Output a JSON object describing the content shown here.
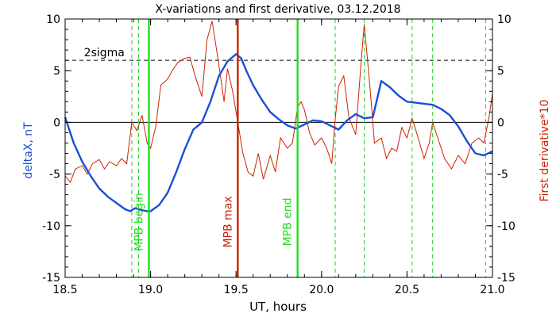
{
  "chart_data": {
    "type": "line",
    "title": "X-variations and first derivative, 03.12.2018",
    "xlabel": "UT, hours",
    "ylabel_left": "deltaX, nT",
    "ylabel_right": "First derivative*10",
    "xlim": [
      18.5,
      21.0
    ],
    "ylim": [
      -15,
      10
    ],
    "x_ticks": [
      "18.5",
      "19.0",
      "19.5",
      "20.0",
      "20.5",
      "21.0"
    ],
    "y_ticks": [
      "-15",
      "-10",
      "-5",
      "0",
      "5",
      "10"
    ],
    "colors": {
      "deltaX": "#1a4fd6",
      "derivative": "#cc2200",
      "mpb_boundary": "#22dd22",
      "mpb_max": "#cc2200",
      "green_dashed": "#22cc22",
      "axis": "#000000"
    },
    "sigma_level": {
      "label": "2sigma",
      "value": 6
    },
    "zero_line": 0,
    "markers": [
      {
        "label": "MPB begin",
        "x": 18.99,
        "color": "#22dd22",
        "style": "solid"
      },
      {
        "label": "MPB max",
        "x": 19.51,
        "color": "#cc2200",
        "style": "solid"
      },
      {
        "label": "MPB end",
        "x": 19.86,
        "color": "#22dd22",
        "style": "solid"
      }
    ],
    "dashed_markers": [
      18.89,
      18.93,
      20.08,
      20.25,
      20.53,
      20.65,
      20.96
    ],
    "series": [
      {
        "name": "deltaX",
        "axis": "left",
        "x": [
          18.5,
          18.55,
          18.6,
          18.65,
          18.7,
          18.75,
          18.8,
          18.85,
          18.88,
          18.91,
          18.95,
          18.98,
          19.0,
          19.05,
          19.1,
          19.15,
          19.2,
          19.25,
          19.3,
          19.35,
          19.4,
          19.45,
          19.5,
          19.53,
          19.56,
          19.6,
          19.65,
          19.7,
          19.75,
          19.8,
          19.85,
          19.9,
          19.95,
          20.0,
          20.05,
          20.1,
          20.15,
          20.2,
          20.25,
          20.3,
          20.35,
          20.4,
          20.45,
          20.5,
          20.55,
          20.6,
          20.65,
          20.7,
          20.75,
          20.8,
          20.85,
          20.9,
          20.95,
          21.0
        ],
        "y": [
          0.5,
          -2.0,
          -3.8,
          -5.2,
          -6.4,
          -7.2,
          -7.8,
          -8.4,
          -8.6,
          -8.3,
          -8.5,
          -8.6,
          -8.6,
          -8.0,
          -6.8,
          -4.8,
          -2.6,
          -0.7,
          0.0,
          2.0,
          4.5,
          5.9,
          6.6,
          6.2,
          5.0,
          3.6,
          2.2,
          1.0,
          0.3,
          -0.3,
          -0.6,
          -0.2,
          0.2,
          0.1,
          -0.3,
          -0.7,
          0.2,
          0.8,
          0.4,
          0.5,
          4.0,
          3.4,
          2.6,
          2.0,
          1.9,
          1.8,
          1.7,
          1.3,
          0.7,
          -0.4,
          -1.8,
          -3.0,
          -3.2,
          -2.8
        ]
      },
      {
        "name": "First derivative*10",
        "axis": "right",
        "x": [
          18.5,
          18.53,
          18.56,
          18.6,
          18.63,
          18.66,
          18.7,
          18.73,
          18.76,
          18.8,
          18.83,
          18.86,
          18.89,
          18.92,
          18.95,
          18.98,
          19.0,
          19.03,
          19.06,
          19.1,
          19.13,
          19.16,
          19.2,
          19.23,
          19.26,
          19.3,
          19.33,
          19.36,
          19.4,
          19.43,
          19.45,
          19.48,
          19.51,
          19.54,
          19.57,
          19.6,
          19.63,
          19.66,
          19.7,
          19.73,
          19.76,
          19.8,
          19.83,
          19.86,
          19.88,
          19.9,
          19.93,
          19.96,
          20.0,
          20.03,
          20.06,
          20.08,
          20.1,
          20.13,
          20.16,
          20.2,
          20.23,
          20.25,
          20.28,
          20.31,
          20.35,
          20.38,
          20.41,
          20.44,
          20.47,
          20.5,
          20.53,
          20.56,
          20.6,
          20.63,
          20.65,
          20.68,
          20.72,
          20.76,
          20.8,
          20.84,
          20.88,
          20.92,
          20.95,
          20.98,
          21.0
        ],
        "y": [
          -5.2,
          -5.8,
          -4.5,
          -4.2,
          -5.0,
          -4.0,
          -3.6,
          -4.5,
          -3.8,
          -4.2,
          -3.5,
          -4.0,
          0.0,
          -0.8,
          0.7,
          -2.0,
          -2.5,
          -0.4,
          3.6,
          4.2,
          5.1,
          5.8,
          6.2,
          6.3,
          4.5,
          2.5,
          8.0,
          9.8,
          5.5,
          2.0,
          5.2,
          3.0,
          0.0,
          -3.0,
          -4.8,
          -5.2,
          -3.0,
          -5.5,
          -3.2,
          -4.8,
          -1.5,
          -2.5,
          -2.0,
          1.5,
          2.0,
          1.2,
          -1.0,
          -2.2,
          -1.5,
          -2.5,
          -4.0,
          0.3,
          3.5,
          4.5,
          0.5,
          -1.2,
          5.5,
          9.5,
          4.0,
          -2.0,
          -1.5,
          -3.5,
          -2.5,
          -2.8,
          -0.5,
          -1.5,
          0.4,
          -1.2,
          -3.5,
          -2.0,
          0.0,
          -1.5,
          -3.5,
          -4.5,
          -3.2,
          -4.0,
          -2.0,
          -1.5,
          -2.0,
          0.5,
          2.8
        ]
      }
    ]
  }
}
